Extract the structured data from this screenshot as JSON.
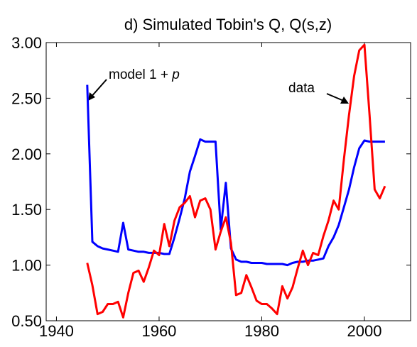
{
  "chart_data": {
    "type": "line",
    "title": "d) Simulated Tobin's Q, Q(s,z)",
    "x": [
      1946,
      1947,
      1948,
      1949,
      1950,
      1951,
      1952,
      1953,
      1954,
      1955,
      1956,
      1957,
      1958,
      1959,
      1960,
      1961,
      1962,
      1963,
      1964,
      1965,
      1966,
      1967,
      1968,
      1969,
      1970,
      1971,
      1972,
      1973,
      1974,
      1975,
      1976,
      1977,
      1978,
      1979,
      1980,
      1981,
      1982,
      1983,
      1984,
      1985,
      1986,
      1987,
      1988,
      1989,
      1990,
      1991,
      1992,
      1993,
      1994,
      1995,
      1996,
      1997,
      1998,
      1999,
      2000,
      2001,
      2002,
      2003,
      2004
    ],
    "series": [
      {
        "color": "#0000ff",
        "values": [
          2.62,
          1.21,
          1.17,
          1.15,
          1.14,
          1.13,
          1.12,
          1.38,
          1.14,
          1.13,
          1.12,
          1.12,
          1.11,
          1.11,
          1.11,
          1.1,
          1.1,
          1.25,
          1.42,
          1.6,
          1.84,
          1.98,
          2.13,
          2.11,
          2.11,
          2.11,
          1.32,
          1.74,
          1.15,
          1.05,
          1.03,
          1.03,
          1.02,
          1.02,
          1.02,
          1.01,
          1.01,
          1.01,
          1.01,
          1.0,
          1.02,
          1.03,
          1.03,
          1.04,
          1.04,
          1.05,
          1.06,
          1.17,
          1.25,
          1.36,
          1.52,
          1.68,
          1.88,
          2.05,
          2.12,
          2.11,
          2.11,
          2.11,
          2.11
        ]
      },
      {
        "color": "#ff0000",
        "values": [
          1.02,
          0.82,
          0.56,
          0.58,
          0.65,
          0.65,
          0.67,
          0.53,
          0.75,
          0.93,
          0.95,
          0.85,
          0.98,
          1.13,
          1.09,
          1.37,
          1.17,
          1.4,
          1.52,
          1.56,
          1.62,
          1.43,
          1.58,
          1.6,
          1.5,
          1.14,
          1.3,
          1.43,
          1.2,
          0.73,
          0.75,
          0.91,
          0.8,
          0.68,
          0.65,
          0.65,
          0.61,
          0.56,
          0.81,
          0.7,
          0.8,
          0.97,
          1.13,
          1.0,
          1.11,
          1.09,
          1.26,
          1.4,
          1.58,
          1.5,
          1.95,
          2.35,
          2.7,
          2.93,
          2.98,
          2.35,
          1.68,
          1.6,
          1.71
        ]
      }
    ],
    "xlim": [
      1938,
      2009
    ],
    "xticks": [
      1940,
      1960,
      1980,
      2000
    ],
    "ylim": [
      0.5,
      3.0
    ],
    "yticks": [
      {
        "value": 0.5,
        "label": "0.50"
      },
      {
        "value": 1,
        "label": "1.00"
      },
      {
        "value": 1.5,
        "label": "1.50"
      },
      {
        "value": 2,
        "label": "2.00"
      },
      {
        "value": 2.5,
        "label": "2.50"
      },
      {
        "value": 3,
        "label": "3.00"
      }
    ],
    "annotations": [
      {
        "text": "model 1 + ",
        "italic": "p"
      },
      {
        "text": "data"
      }
    ]
  }
}
